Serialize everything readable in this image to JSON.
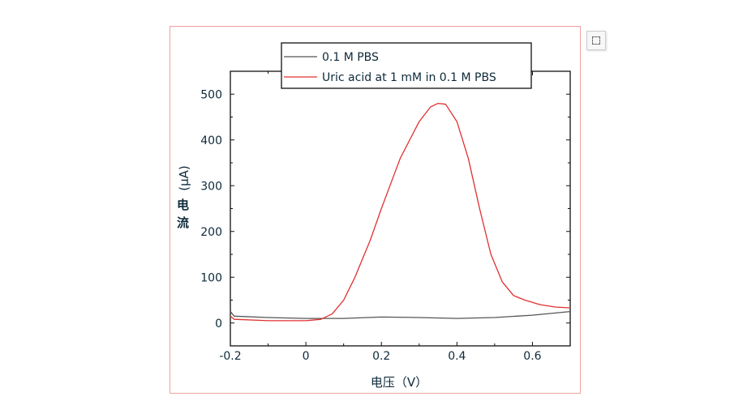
{
  "chart_data": {
    "type": "line",
    "xlabel": "电压（V）",
    "ylabel": "电流",
    "ylabel_unit": "(µA)",
    "xlim": [
      -0.2,
      0.7
    ],
    "ylim": [
      -50,
      550
    ],
    "xticks": [
      "-0.2",
      "0",
      "0.2",
      "0.4",
      "0.6"
    ],
    "yticks": [
      "0",
      "100",
      "200",
      "300",
      "400",
      "500"
    ],
    "grid": false,
    "legend": "top-center",
    "series": [
      {
        "name": "0.1 M PBS",
        "color": "#555555",
        "x": [
          -0.2,
          -0.19,
          -0.1,
          0,
          0.1,
          0.2,
          0.3,
          0.4,
          0.5,
          0.6,
          0.7
        ],
        "y": [
          25,
          15,
          12,
          10,
          10,
          13,
          12,
          10,
          12,
          17,
          25
        ]
      },
      {
        "name": "Uric acid at 1 mM in 0.1 M PBS",
        "color": "#e03030",
        "x": [
          -0.2,
          -0.19,
          -0.1,
          0,
          0.04,
          0.07,
          0.1,
          0.13,
          0.17,
          0.2,
          0.25,
          0.3,
          0.33,
          0.35,
          0.37,
          0.4,
          0.43,
          0.46,
          0.49,
          0.52,
          0.55,
          0.58,
          0.62,
          0.66,
          0.7
        ],
        "y": [
          15,
          8,
          5,
          5,
          8,
          20,
          50,
          100,
          180,
          250,
          360,
          440,
          472,
          480,
          478,
          440,
          360,
          250,
          150,
          90,
          60,
          50,
          40,
          35,
          33
        ]
      }
    ]
  },
  "toolbar": {
    "icon": "image-fit-icon"
  }
}
